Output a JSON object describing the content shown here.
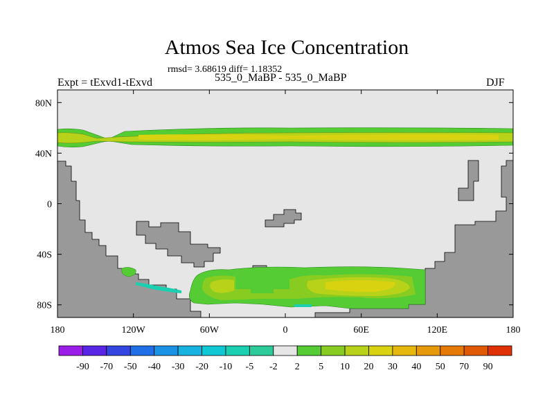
{
  "chart_data": {
    "type": "heatmap",
    "title": "Atmos Sea Ice Concentration",
    "stats_text": "rmsd= 3.68619 diff= 1.18352",
    "left_label": "Expt = tExvd1-tExvd",
    "center_label": "535_0_MaBP - 535_0_MaBP",
    "right_label": "DJF",
    "x_ticks": [
      {
        "value": -180,
        "label": "180"
      },
      {
        "value": -120,
        "label": "120W"
      },
      {
        "value": -60,
        "label": "60W"
      },
      {
        "value": 0,
        "label": "0"
      },
      {
        "value": 60,
        "label": "60E"
      },
      {
        "value": 120,
        "label": "120E"
      },
      {
        "value": 180,
        "label": "180"
      }
    ],
    "y_ticks": [
      {
        "value": 80,
        "label": "80N"
      },
      {
        "value": 40,
        "label": "40N"
      },
      {
        "value": 0,
        "label": "0"
      },
      {
        "value": -40,
        "label": "40S"
      },
      {
        "value": -80,
        "label": "80S"
      }
    ],
    "xlim": [
      -180,
      180
    ],
    "ylim": [
      -90,
      90
    ],
    "background_color": "#e6e6e6",
    "land_color": "#999999",
    "colorbar": {
      "levels": [
        "-90",
        "-70",
        "-50",
        "-40",
        "-30",
        "-20",
        "-10",
        "-5",
        "-2",
        "2",
        "5",
        "10",
        "20",
        "30",
        "40",
        "50",
        "70",
        "90"
      ],
      "colors": [
        "#9b1de8",
        "#5a26e6",
        "#3347e0",
        "#1f6fe6",
        "#1a93e6",
        "#18b2e0",
        "#10c8d4",
        "#1ad0b0",
        "#2ecb9a",
        "#e6e6e6",
        "#55cc33",
        "#88cc22",
        "#b8d21a",
        "#d8d210",
        "#e6b80e",
        "#e69a0a",
        "#e67a06",
        "#e05a06",
        "#e03006"
      ]
    },
    "ice_bands": [
      {
        "name": "northern band",
        "lon": [
          -180,
          180
        ],
        "lat": [
          42,
          58
        ],
        "color": "#55cc33"
      },
      {
        "name": "southern band",
        "lon": [
          -72,
          112
        ],
        "lat": [
          -84,
          -48
        ],
        "color": "#55cc33"
      }
    ]
  }
}
